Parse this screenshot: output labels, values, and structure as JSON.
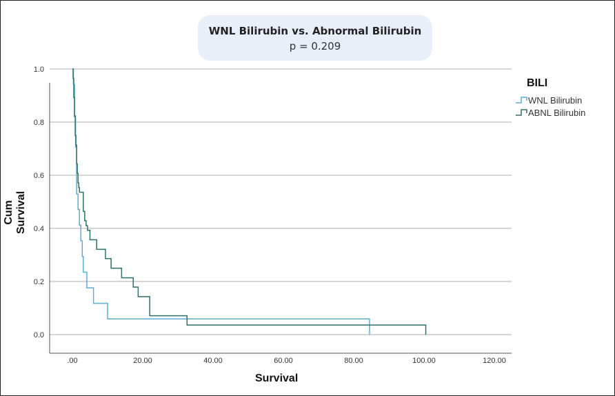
{
  "chart_data": {
    "type": "line",
    "step": true,
    "title": "WNL Bilirubin vs. Abnormal Bilirubin",
    "subtitle": "p = 0.209",
    "xlabel": "Survival",
    "ylabel": "Cum Survival",
    "xlim": [
      -6,
      124
    ],
    "ylim": [
      0,
      1.0
    ],
    "xticks": [
      ".00",
      "20.00",
      "40.00",
      "60.00",
      "80.00",
      "100.00",
      "120.00"
    ],
    "xtick_values": [
      0,
      20,
      40,
      60,
      80,
      100,
      120
    ],
    "yticks": [
      "0.0",
      "0.2",
      "0.4",
      "0.6",
      "0.8",
      "1.0"
    ],
    "ytick_values": [
      0,
      0.2,
      0.4,
      0.6,
      0.8,
      1.0
    ],
    "grid": "horizontal",
    "legend": {
      "title": "BILI",
      "placement": "right"
    },
    "series": [
      {
        "name": "WNL Bilirubin",
        "color": "#5aaed6",
        "x": [
          0,
          0.3,
          0.6,
          0.9,
          1.2,
          1.6,
          2.0,
          2.4,
          2.8,
          3.1,
          4.1,
          6.0,
          10.0,
          84.5
        ],
        "y": [
          1.0,
          0.941,
          0.824,
          0.706,
          0.529,
          0.471,
          0.412,
          0.353,
          0.294,
          0.235,
          0.176,
          0.118,
          0.059,
          0.0
        ]
      },
      {
        "name": "ABNL Bilirubin",
        "color": "#2f6f68",
        "x": [
          0,
          0.2,
          0.4,
          0.6,
          0.8,
          1.0,
          1.2,
          1.4,
          1.6,
          1.8,
          2.0,
          3.1,
          3.5,
          3.9,
          4.3,
          5.0,
          6.9,
          9.4,
          11.0,
          14.0,
          17.3,
          18.7,
          22.0,
          32.6,
          100.5
        ],
        "y": [
          1.0,
          0.964,
          0.893,
          0.821,
          0.75,
          0.714,
          0.643,
          0.607,
          0.571,
          0.554,
          0.536,
          0.464,
          0.429,
          0.41,
          0.393,
          0.357,
          0.321,
          0.286,
          0.25,
          0.214,
          0.179,
          0.143,
          0.071,
          0.036,
          0.0
        ]
      }
    ]
  }
}
